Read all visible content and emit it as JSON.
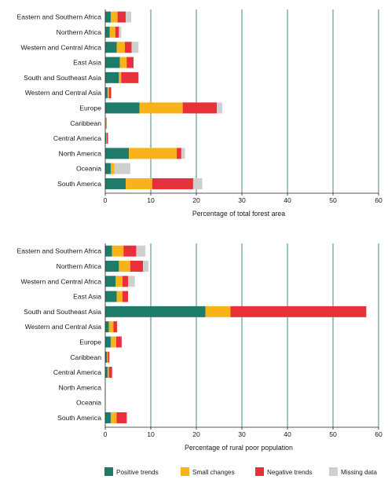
{
  "legend": [
    {
      "label": "Positive trends",
      "color": "#1e7b6a"
    },
    {
      "label": "Small changes",
      "color": "#f8b31a"
    },
    {
      "label": "Negative trends",
      "color": "#e8303a"
    },
    {
      "label": "Missing data",
      "color": "#cfcfcf"
    }
  ],
  "chart_data": [
    {
      "type": "bar",
      "orientation": "horizontal",
      "stacked": true,
      "xlabel": "Percentage of total forest area",
      "xlim": [
        0,
        60
      ],
      "xticks": [
        "0",
        "10",
        "20",
        "30",
        "40",
        "50",
        "60"
      ],
      "grid": "vertical",
      "categories": [
        "Eastern and Southern Africa",
        "Northern Africa",
        "Western and Central Africa",
        "East Asia",
        "South and Southeast Asia",
        "Western and Central Asia",
        "Europe",
        "Caribbean",
        "Central America",
        "North America",
        "Oceania",
        "South America"
      ],
      "series": [
        {
          "name": "Positive trends",
          "values": [
            1.2,
            1.0,
            2.5,
            3.2,
            3.0,
            0.5,
            7.5,
            0.1,
            0.2,
            5.2,
            1.2,
            4.5
          ]
        },
        {
          "name": "Small changes",
          "values": [
            1.5,
            1.2,
            1.8,
            1.5,
            0.5,
            0.3,
            9.5,
            0.1,
            0.1,
            10.5,
            0.8,
            5.8
          ]
        },
        {
          "name": "Negative trends",
          "values": [
            1.8,
            0.8,
            1.5,
            1.5,
            3.8,
            0.5,
            7.5,
            0.1,
            0.3,
            1.0,
            0.0,
            9.0
          ]
        },
        {
          "name": "Missing data",
          "values": [
            1.2,
            0.5,
            1.5,
            0.0,
            0.0,
            0.0,
            1.2,
            0.0,
            0.0,
            0.8,
            3.5,
            2.0
          ]
        }
      ]
    },
    {
      "type": "bar",
      "orientation": "horizontal",
      "stacked": true,
      "xlabel": "Percentage of rural poor population",
      "xlim": [
        0,
        60
      ],
      "xticks": [
        "0",
        "10",
        "20",
        "30",
        "40",
        "50",
        "60"
      ],
      "grid": "vertical",
      "categories": [
        "Eastern and Southern Africa",
        "Northern Africa",
        "Western and Central Africa",
        "East Asia",
        "South and Southeast Asia",
        "Western and Central Asia",
        "Europe",
        "Caribbean",
        "Central America",
        "North America",
        "Oceania",
        "South America"
      ],
      "series": [
        {
          "name": "Positive trends",
          "values": [
            1.5,
            3.0,
            2.3,
            2.5,
            22.0,
            0.8,
            1.2,
            0.4,
            0.5,
            0.0,
            0.0,
            1.2
          ]
        },
        {
          "name": "Small changes",
          "values": [
            2.5,
            2.5,
            1.5,
            1.3,
            5.5,
            1.0,
            1.2,
            0.2,
            0.3,
            0.0,
            0.0,
            1.3
          ]
        },
        {
          "name": "Negative trends",
          "values": [
            2.8,
            2.8,
            1.2,
            1.2,
            29.8,
            0.8,
            1.2,
            0.3,
            0.7,
            0.0,
            0.0,
            2.2
          ]
        },
        {
          "name": "Missing data",
          "values": [
            2.0,
            1.2,
            1.5,
            0.0,
            0.0,
            0.0,
            0.0,
            0.0,
            0.0,
            0.0,
            0.0,
            0.2
          ]
        }
      ]
    }
  ]
}
